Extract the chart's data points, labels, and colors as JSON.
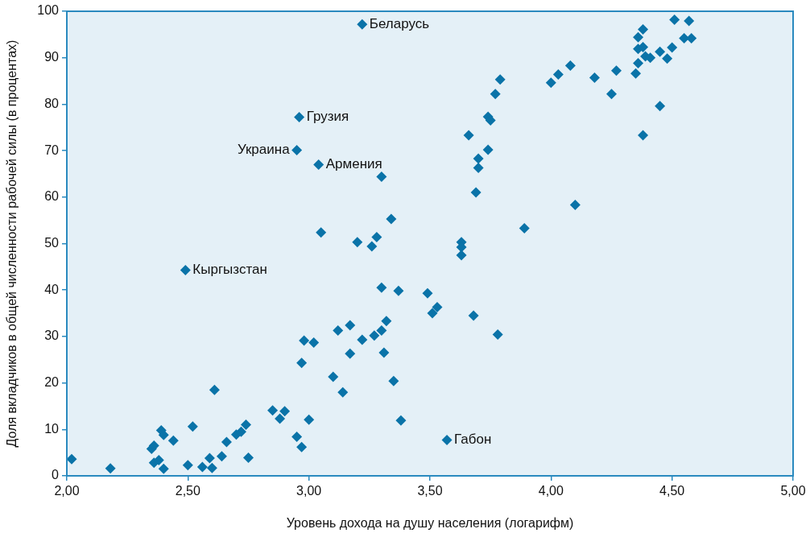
{
  "chart_data": {
    "type": "scatter",
    "xlabel": "Уровень дохода на душу населения (логарифм)",
    "ylabel": "Доля вкладчиков в общей численности рабочей силы (в процентах)",
    "xlim": [
      2,
      5
    ],
    "xticks": [
      {
        "value": 2,
        "label": "2,00"
      },
      {
        "value": 2.5,
        "label": "2,50"
      },
      {
        "value": 3,
        "label": "3,00"
      },
      {
        "value": 3.5,
        "label": "3,50"
      },
      {
        "value": 4,
        "label": "4,00"
      },
      {
        "value": 4.5,
        "label": "4,50"
      },
      {
        "value": 5,
        "label": "5,00"
      }
    ],
    "ylim": [
      0,
      100
    ],
    "yticks": [
      0,
      10,
      20,
      30,
      40,
      50,
      60,
      70,
      80,
      90,
      100
    ],
    "grid": false,
    "legend": false,
    "marker": "diamond",
    "series": [
      {
        "color": "#0a73a8",
        "x": [
          2.02,
          2.18,
          2.35,
          2.36,
          2.36,
          2.38,
          2.39,
          2.4,
          2.4,
          2.44,
          2.5,
          2.52,
          2.56,
          2.59,
          2.6,
          2.61,
          2.64,
          2.66,
          2.7,
          2.72,
          2.74,
          2.75,
          2.85,
          2.88,
          2.9,
          2.95,
          2.97,
          2.97,
          2.98,
          3,
          3.02,
          3.1,
          3.12,
          3.14,
          3.17,
          3.17,
          3.22,
          3.26,
          3.27,
          3.28,
          3.3,
          3.3,
          3.31,
          3.32,
          3.35,
          3.37,
          3.38,
          3.2,
          3.05,
          3.34,
          3.3,
          3.49,
          3.51,
          3.53,
          3.57,
          3.63,
          3.63,
          3.63,
          3.68,
          3.66,
          3.69,
          3.7,
          3.7,
          3.74,
          3.75,
          3.74,
          3.77,
          3.79,
          3.78,
          3.89,
          4,
          4.03,
          4.08,
          4.1,
          4.18,
          4.25,
          4.27,
          4.35,
          4.36,
          4.36,
          4.36,
          4.38,
          4.38,
          4.39,
          4.41,
          4.38,
          4.45,
          4.45,
          4.48,
          4.5,
          4.51,
          4.55,
          4.57,
          4.58,
          3.22,
          2.96,
          2.95,
          3.04,
          2.49
        ],
        "values": [
          3.6,
          1.6,
          5.8,
          6.5,
          2.8,
          3.4,
          9.8,
          8.8,
          1.5,
          7.6,
          2.3,
          10.6,
          1.9,
          3.8,
          1.7,
          18.5,
          4.2,
          7.3,
          8.9,
          9.5,
          11,
          3.9,
          14.1,
          12.3,
          13.9,
          8.4,
          6.2,
          24.3,
          29.1,
          12.1,
          28.7,
          21.3,
          31.3,
          18,
          32.4,
          26.3,
          29.3,
          49.4,
          30.2,
          51.4,
          31.3,
          40.5,
          26.5,
          33.3,
          20.4,
          39.8,
          11.9,
          50.3,
          52.4,
          55.3,
          64.4,
          39.3,
          35,
          36.3,
          7.7,
          50.3,
          49.2,
          47.5,
          34.5,
          73.3,
          61,
          66.3,
          68.3,
          77.3,
          76.5,
          70.2,
          82.2,
          85.3,
          30.4,
          53.3,
          84.6,
          86.4,
          88.3,
          58.3,
          85.7,
          82.2,
          87.2,
          86.6,
          88.8,
          91.9,
          94.4,
          96.1,
          92.3,
          90.3,
          90,
          73.3,
          79.6,
          91.3,
          89.8,
          92.2,
          98.2,
          94.2,
          97.9,
          94.2,
          97.2,
          77.2,
          70.1,
          67,
          44.3
        ]
      }
    ],
    "annotations": [
      {
        "text": "Беларусь",
        "x": 3.22,
        "y": 97.2
      },
      {
        "text": "Грузия",
        "x": 2.96,
        "y": 77.2
      },
      {
        "text": "Украина",
        "x": 2.95,
        "y": 70.1
      },
      {
        "text": "Армения",
        "x": 3.04,
        "y": 67
      },
      {
        "text": "Кыргызстан",
        "x": 2.49,
        "y": 44.3
      },
      {
        "text": "Габон",
        "x": 3.57,
        "y": 7.7
      }
    ]
  }
}
